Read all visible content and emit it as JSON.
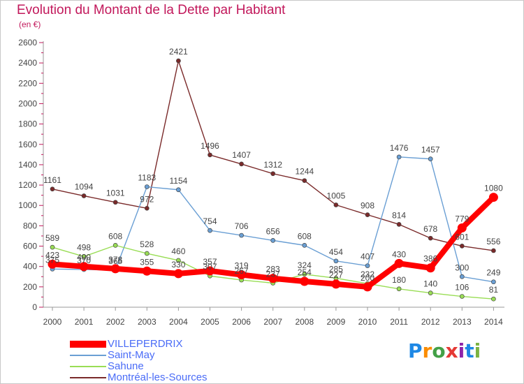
{
  "title": "Evolution du Montant de la Dette par Habitant",
  "subtitle": "(en €)",
  "brand": {
    "text": "Proxiti",
    "letters": [
      {
        "char": "P",
        "color": "#1e88e5"
      },
      {
        "char": "r",
        "color": "#fb8c00"
      },
      {
        "char": "o",
        "color": "#43a047"
      },
      {
        "char": "x",
        "color": "#e53935"
      },
      {
        "char": "i",
        "color": "#8e24aa"
      },
      {
        "char": "t",
        "color": "#1e88e5"
      },
      {
        "char": "i",
        "color": "#7cb342"
      }
    ]
  },
  "chart_data": {
    "type": "line",
    "title": "Evolution du Montant de la Dette par Habitant",
    "subtitle": "(en €)",
    "xlabel": "",
    "ylabel": "",
    "x": [
      "2000",
      "2001",
      "2002",
      "2003",
      "2004",
      "2005",
      "2006",
      "2007",
      "2008",
      "2009",
      "2010",
      "2011",
      "2012",
      "2013",
      "2014"
    ],
    "ylim": [
      0,
      2600
    ],
    "yticks": [
      0,
      200,
      400,
      600,
      800,
      1000,
      1200,
      1400,
      1600,
      1800,
      2000,
      2200,
      2400,
      2600
    ],
    "grid": false,
    "legend": "bottom-left",
    "series": [
      {
        "name": "VILLEPERDRIX",
        "color": "#ff0000",
        "values": [
          423,
          400,
          378,
          355,
          330,
          357,
          319,
          283,
          254,
          227,
          200,
          430,
          386,
          779,
          1080
        ]
      },
      {
        "name": "Saint-May",
        "color": "#6a9fd4",
        "values": [
          375,
          370,
          365,
          1183,
          1154,
          754,
          706,
          656,
          608,
          454,
          407,
          1476,
          1457,
          300,
          249
        ]
      },
      {
        "name": "Sahune",
        "color": "#99dd55",
        "values": [
          589,
          498,
          608,
          528,
          460,
          307,
          267,
          237,
          324,
          285,
          232,
          180,
          140,
          106,
          81
        ]
      },
      {
        "name": "Montréal-les-Sources",
        "color": "#7a2a2a",
        "values": [
          1161,
          1094,
          1031,
          972,
          2421,
          1496,
          1407,
          1312,
          1244,
          1005,
          908,
          814,
          678,
          601,
          556
        ]
      }
    ]
  }
}
